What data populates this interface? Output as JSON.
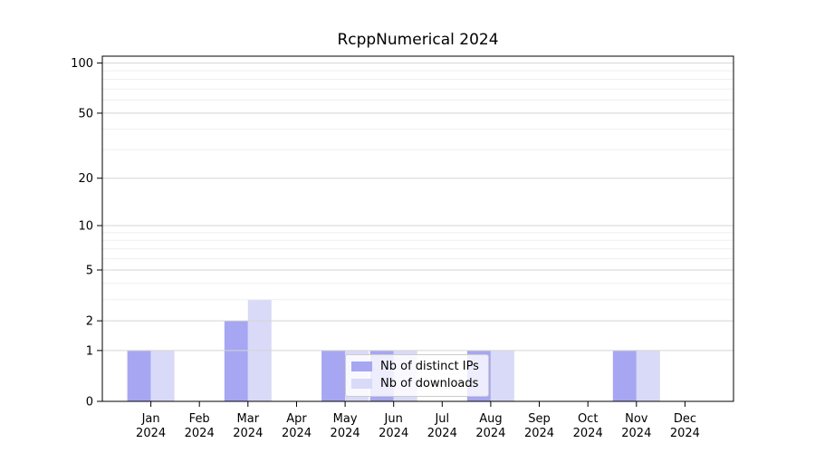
{
  "chart_data": {
    "type": "bar",
    "title": "RcppNumerical 2024",
    "categories": [
      "Jan",
      "Feb",
      "Mar",
      "Apr",
      "May",
      "Jun",
      "Jul",
      "Aug",
      "Sep",
      "Oct",
      "Nov",
      "Dec"
    ],
    "category_year_label": "2024",
    "series": [
      {
        "name": "Nb of distinct IPs",
        "color": "#a6a6f2",
        "values": [
          1,
          0,
          2,
          0,
          1,
          1,
          0,
          1,
          0,
          0,
          1,
          0
        ]
      },
      {
        "name": "Nb of downloads",
        "color": "#d9d9f8",
        "values": [
          1,
          0,
          3,
          0,
          1,
          1,
          0,
          1,
          0,
          0,
          1,
          0
        ]
      }
    ],
    "y_scale": "log1p",
    "ylim": [
      0,
      110
    ],
    "y_ticks": [
      0,
      1,
      2,
      5,
      10,
      20,
      50,
      100
    ],
    "y_minor_ticks": [
      3,
      4,
      6,
      7,
      8,
      9,
      30,
      40,
      60,
      70,
      80,
      90
    ],
    "xlabel": "",
    "ylabel": "",
    "grid": "horizontal",
    "legend_position": "lower-center-inside"
  },
  "colors": {
    "background": "#ffffff",
    "axis_frame": "#000000",
    "tick_text": "#000000",
    "major_grid": "#d4d4d4",
    "minor_grid": "#efefef"
  }
}
